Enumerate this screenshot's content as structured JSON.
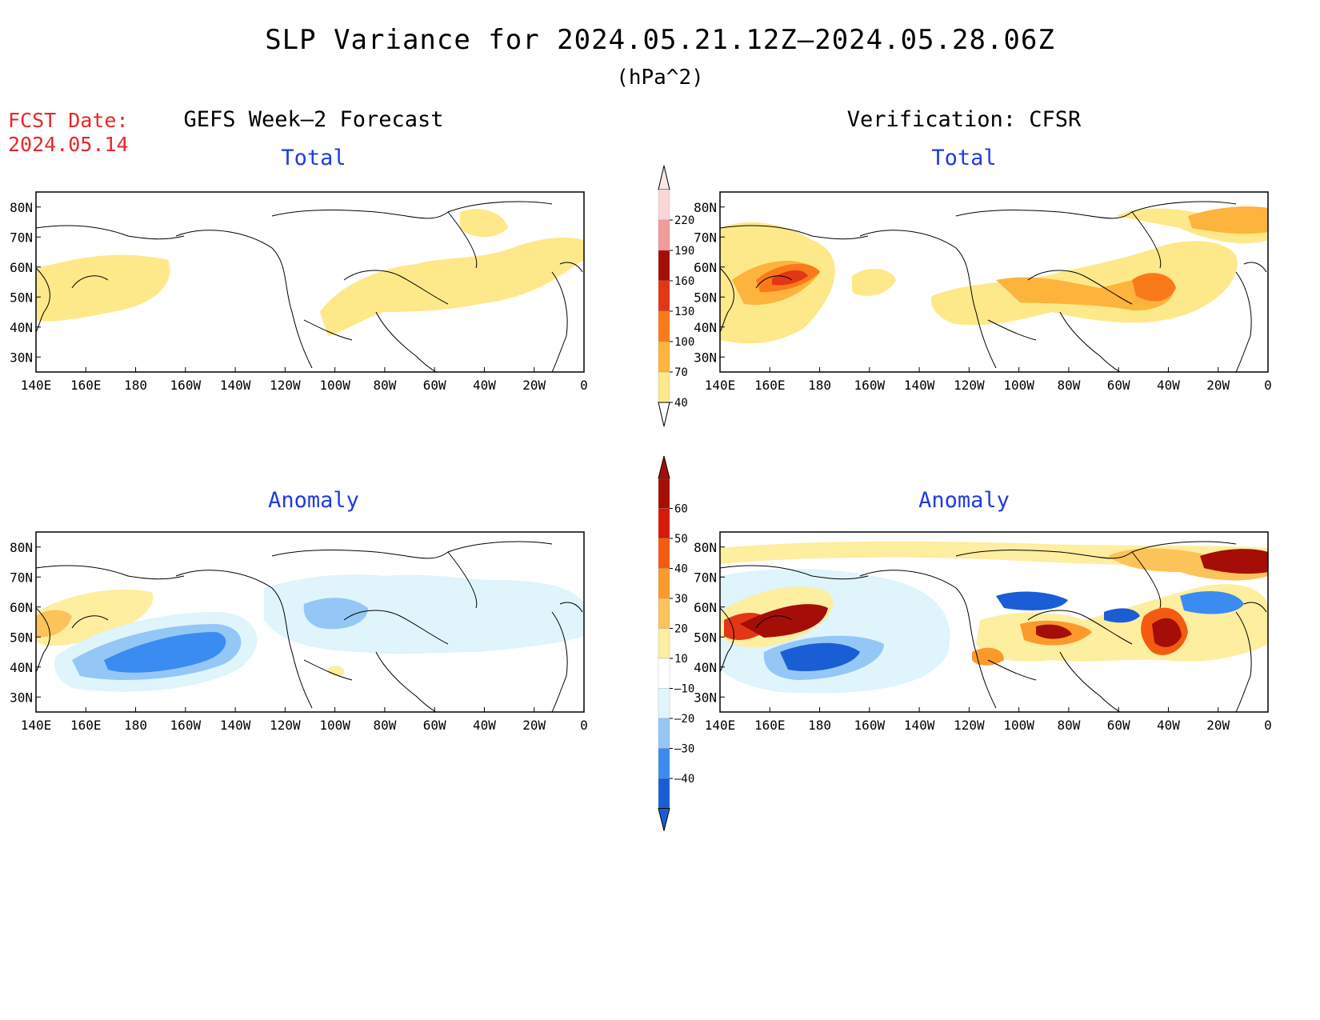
{
  "title": "SLP Variance for 2024.05.21.12Z–2024.05.28.06Z",
  "units": "(hPa^2)",
  "fcst": {
    "label": "FCST Date:",
    "date": "2024.05.14"
  },
  "columns": {
    "left": "GEFS Week–2 Forecast",
    "right": "Verification: CFSR"
  },
  "rows": {
    "total": "Total",
    "anomaly": "Anomaly"
  },
  "map_axes": {
    "lon_ticks": [
      "140E",
      "160E",
      "180",
      "160W",
      "140W",
      "120W",
      "100W",
      "80W",
      "60W",
      "40W",
      "20W",
      "0"
    ],
    "lat_ticks": [
      "80N",
      "70N",
      "60N",
      "50N",
      "40N",
      "30N"
    ],
    "lat_values": [
      80,
      70,
      60,
      50,
      40,
      30
    ],
    "lat_range": [
      25,
      85
    ],
    "lon_range_east_deg": [
      140,
      360
    ]
  },
  "colorbars": {
    "total": {
      "labels": [
        "40",
        "70",
        "100",
        "130",
        "160",
        "190",
        "220"
      ],
      "colors": [
        "#fde98a",
        "#fcb43c",
        "#fa7a1a",
        "#e33616",
        "#a50e07",
        "#f29b9b",
        "#fbd6d6"
      ]
    },
    "anomaly": {
      "labels": [
        "–40",
        "–30",
        "–20",
        "–10",
        "10",
        "20",
        "30",
        "40",
        "50",
        "60"
      ],
      "colors": [
        "#1a5ed6",
        "#3b8cf0",
        "#94c7f5",
        "#dff4fb",
        "#ffffff",
        "#fdeea0",
        "#fcc35a",
        "#fb9a2b",
        "#f45b10",
        "#d6190b",
        "#a50e07"
      ]
    }
  },
  "colors": {
    "fcst_label": "#e8262a",
    "subtitle": "#1f3be0"
  }
}
